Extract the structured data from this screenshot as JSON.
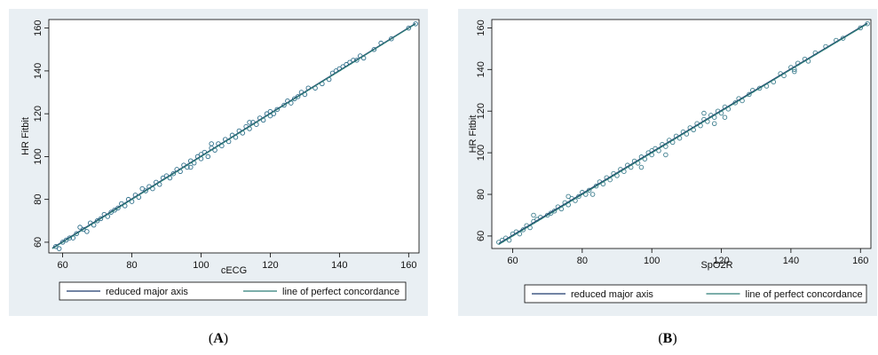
{
  "chart_data": [
    {
      "id": "A",
      "type": "scatter",
      "panel_label": "A",
      "xlabel": "cECG",
      "ylabel": "HR Fitbit",
      "xlim": [
        56,
        163
      ],
      "ylim": [
        55,
        164
      ],
      "xticks": [
        60,
        80,
        100,
        120,
        140,
        160
      ],
      "yticks": [
        60,
        80,
        100,
        120,
        140,
        160
      ],
      "grid": false,
      "legend": {
        "placement": "bottom",
        "entries": [
          "reduced major axis",
          "line of perfect concordance"
        ]
      },
      "series": [
        {
          "name": "reduced major axis",
          "type": "line",
          "x": [
            57,
            162
          ],
          "y": [
            57.3,
            162.2
          ],
          "color": "#1f3a6e"
        },
        {
          "name": "line of perfect concordance",
          "type": "line",
          "x": [
            57,
            162
          ],
          "y": [
            57,
            162
          ],
          "color": "#2e7d78"
        }
      ],
      "points_color": "#2d6e8a",
      "points": [
        [
          58,
          58
        ],
        [
          59,
          57
        ],
        [
          60,
          60
        ],
        [
          61,
          61
        ],
        [
          62,
          62
        ],
        [
          63,
          62
        ],
        [
          64,
          64
        ],
        [
          66,
          66
        ],
        [
          67,
          65
        ],
        [
          68,
          69
        ],
        [
          70,
          70
        ],
        [
          71,
          71
        ],
        [
          72,
          73
        ],
        [
          73,
          72
        ],
        [
          74,
          74
        ],
        [
          75,
          75
        ],
        [
          76,
          76
        ],
        [
          77,
          78
        ],
        [
          78,
          77
        ],
        [
          79,
          80
        ],
        [
          80,
          79
        ],
        [
          81,
          82
        ],
        [
          82,
          81
        ],
        [
          84,
          84
        ],
        [
          85,
          86
        ],
        [
          86,
          85
        ],
        [
          87,
          88
        ],
        [
          88,
          87
        ],
        [
          89,
          90
        ],
        [
          90,
          91
        ],
        [
          91,
          90
        ],
        [
          92,
          92
        ],
        [
          93,
          94
        ],
        [
          94,
          93
        ],
        [
          95,
          96
        ],
        [
          96,
          95
        ],
        [
          97,
          98
        ],
        [
          98,
          97
        ],
        [
          99,
          100
        ],
        [
          100,
          99
        ],
        [
          100,
          101
        ],
        [
          101,
          102
        ],
        [
          102,
          100
        ],
        [
          103,
          104
        ],
        [
          104,
          103
        ],
        [
          105,
          106
        ],
        [
          106,
          105
        ],
        [
          107,
          108
        ],
        [
          108,
          107
        ],
        [
          109,
          110
        ],
        [
          110,
          109
        ],
        [
          111,
          112
        ],
        [
          112,
          111
        ],
        [
          113,
          114
        ],
        [
          114,
          113
        ],
        [
          115,
          116
        ],
        [
          116,
          115
        ],
        [
          117,
          118
        ],
        [
          118,
          117
        ],
        [
          119,
          120
        ],
        [
          120,
          121
        ],
        [
          121,
          120
        ],
        [
          122,
          122
        ],
        [
          124,
          124
        ],
        [
          125,
          126
        ],
        [
          126,
          125
        ],
        [
          128,
          128
        ],
        [
          129,
          130
        ],
        [
          130,
          129
        ],
        [
          131,
          132
        ],
        [
          133,
          132
        ],
        [
          135,
          134
        ],
        [
          137,
          136
        ],
        [
          138,
          139
        ],
        [
          140,
          141
        ],
        [
          141,
          142
        ],
        [
          142,
          143
        ],
        [
          143,
          144
        ],
        [
          145,
          145
        ],
        [
          146,
          147
        ],
        [
          147,
          146
        ],
        [
          150,
          150
        ],
        [
          152,
          153
        ],
        [
          155,
          155
        ],
        [
          160,
          160
        ],
        [
          162,
          162
        ],
        [
          65,
          67
        ],
        [
          69,
          68
        ],
        [
          83,
          85
        ],
        [
          97,
          95
        ],
        [
          103,
          106
        ],
        [
          114,
          116
        ],
        [
          120,
          119
        ],
        [
          127,
          127
        ],
        [
          139,
          140
        ],
        [
          144,
          145
        ]
      ]
    },
    {
      "id": "B",
      "type": "scatter",
      "panel_label": "B",
      "xlabel": "SpO2R",
      "ylabel": "HR Fitbit",
      "xlim": [
        54,
        163
      ],
      "ylim": [
        54,
        164
      ],
      "xticks": [
        60,
        80,
        100,
        120,
        140,
        160
      ],
      "yticks": [
        60,
        80,
        100,
        120,
        140,
        160
      ],
      "grid": false,
      "legend": {
        "placement": "bottom",
        "entries": [
          "reduced major axis",
          "line of perfect concordance"
        ]
      },
      "series": [
        {
          "name": "reduced major axis",
          "type": "line",
          "x": [
            56,
            162
          ],
          "y": [
            56.4,
            162.3
          ],
          "color": "#1f3a6e"
        },
        {
          "name": "line of perfect concordance",
          "type": "line",
          "x": [
            56,
            162
          ],
          "y": [
            56,
            162
          ],
          "color": "#2e7d78"
        }
      ],
      "points_color": "#3f7f8f",
      "points": [
        [
          56,
          57
        ],
        [
          57,
          58
        ],
        [
          58,
          59
        ],
        [
          59,
          58
        ],
        [
          60,
          61
        ],
        [
          61,
          62
        ],
        [
          62,
          61
        ],
        [
          63,
          63
        ],
        [
          64,
          65
        ],
        [
          65,
          64
        ],
        [
          66,
          67
        ],
        [
          67,
          68
        ],
        [
          68,
          69
        ],
        [
          70,
          70
        ],
        [
          71,
          71
        ],
        [
          72,
          72
        ],
        [
          73,
          74
        ],
        [
          74,
          73
        ],
        [
          75,
          76
        ],
        [
          76,
          75
        ],
        [
          77,
          78
        ],
        [
          78,
          77
        ],
        [
          79,
          79
        ],
        [
          80,
          81
        ],
        [
          81,
          80
        ],
        [
          82,
          82
        ],
        [
          84,
          84
        ],
        [
          85,
          86
        ],
        [
          86,
          85
        ],
        [
          87,
          88
        ],
        [
          88,
          87
        ],
        [
          89,
          90
        ],
        [
          90,
          89
        ],
        [
          91,
          92
        ],
        [
          92,
          91
        ],
        [
          93,
          94
        ],
        [
          94,
          93
        ],
        [
          95,
          96
        ],
        [
          96,
          95
        ],
        [
          97,
          98
        ],
        [
          98,
          97
        ],
        [
          99,
          100
        ],
        [
          100,
          99
        ],
        [
          100,
          101
        ],
        [
          101,
          102
        ],
        [
          102,
          101
        ],
        [
          103,
          104
        ],
        [
          104,
          103
        ],
        [
          105,
          106
        ],
        [
          106,
          105
        ],
        [
          107,
          108
        ],
        [
          108,
          107
        ],
        [
          109,
          110
        ],
        [
          110,
          109
        ],
        [
          111,
          112
        ],
        [
          112,
          111
        ],
        [
          113,
          114
        ],
        [
          114,
          113
        ],
        [
          115,
          116
        ],
        [
          116,
          115
        ],
        [
          117,
          118
        ],
        [
          118,
          117
        ],
        [
          119,
          120
        ],
        [
          120,
          119
        ],
        [
          121,
          122
        ],
        [
          122,
          121
        ],
        [
          124,
          124
        ],
        [
          125,
          126
        ],
        [
          126,
          125
        ],
        [
          128,
          128
        ],
        [
          129,
          130
        ],
        [
          131,
          131
        ],
        [
          133,
          132
        ],
        [
          135,
          134
        ],
        [
          137,
          138
        ],
        [
          138,
          137
        ],
        [
          140,
          141
        ],
        [
          141,
          140
        ],
        [
          142,
          143
        ],
        [
          144,
          145
        ],
        [
          145,
          144
        ],
        [
          147,
          148
        ],
        [
          150,
          151
        ],
        [
          153,
          154
        ],
        [
          155,
          155
        ],
        [
          160,
          160
        ],
        [
          162,
          162
        ],
        [
          66,
          70
        ],
        [
          76,
          79
        ],
        [
          83,
          80
        ],
        [
          97,
          93
        ],
        [
          104,
          99
        ],
        [
          115,
          119
        ],
        [
          118,
          114
        ],
        [
          121,
          117
        ],
        [
          141,
          139
        ]
      ]
    }
  ]
}
